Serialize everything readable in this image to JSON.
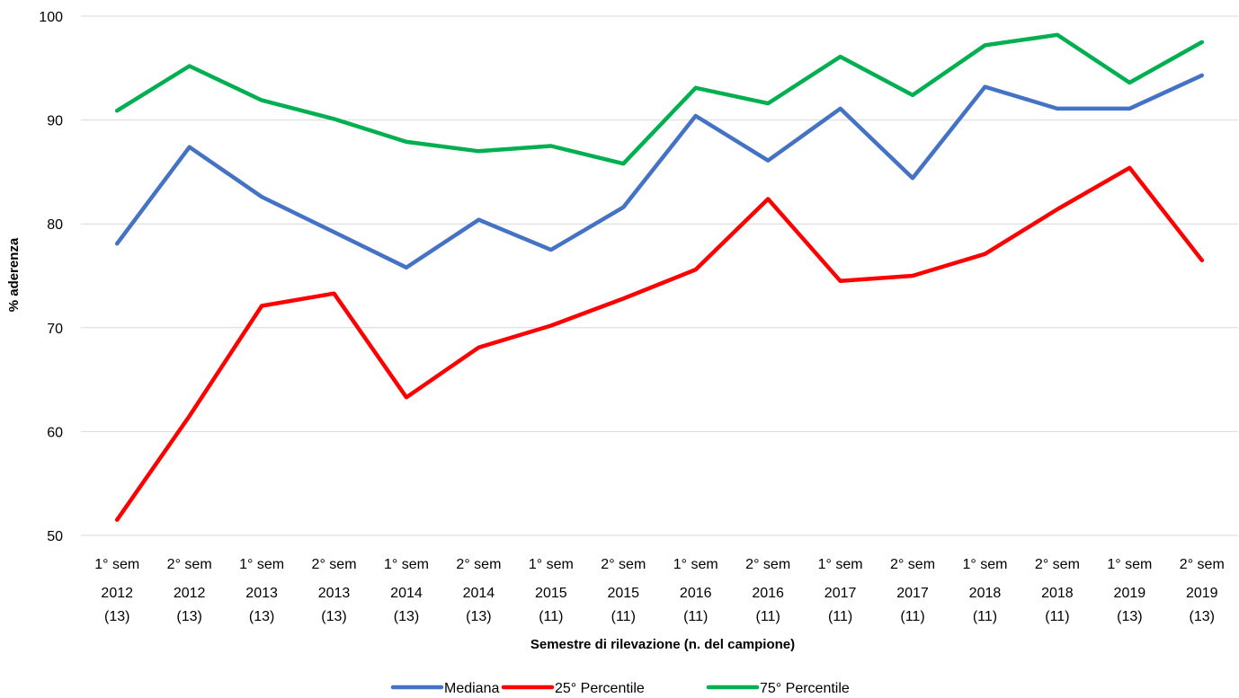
{
  "chart_data": {
    "type": "line",
    "categories": [
      {
        "sem": "1° sem",
        "year": "2012",
        "n": "(13)"
      },
      {
        "sem": "2° sem",
        "year": "2012",
        "n": "(13)"
      },
      {
        "sem": "1° sem",
        "year": "2013",
        "n": "(13)"
      },
      {
        "sem": "2° sem",
        "year": "2013",
        "n": "(13)"
      },
      {
        "sem": "1° sem",
        "year": "2014",
        "n": "(13)"
      },
      {
        "sem": "2° sem",
        "year": "2014",
        "n": "(13)"
      },
      {
        "sem": "1° sem",
        "year": "2015",
        "n": "(11)"
      },
      {
        "sem": "2° sem",
        "year": "2015",
        "n": "(11)"
      },
      {
        "sem": "1° sem",
        "year": "2016",
        "n": "(11)"
      },
      {
        "sem": "2° sem",
        "year": "2016",
        "n": "(11)"
      },
      {
        "sem": "1° sem",
        "year": "2017",
        "n": "(11)"
      },
      {
        "sem": "2° sem",
        "year": "2017",
        "n": "(11)"
      },
      {
        "sem": "1° sem",
        "year": "2018",
        "n": "(11)"
      },
      {
        "sem": "2° sem",
        "year": "2018",
        "n": "(11)"
      },
      {
        "sem": "1° sem",
        "year": "2019",
        "n": "(13)"
      },
      {
        "sem": "2° sem",
        "year": "2019",
        "n": "(13)"
      }
    ],
    "series": [
      {
        "name": "Mediana",
        "color": "#4472C4",
        "values": [
          78.1,
          87.4,
          82.6,
          79.2,
          75.8,
          80.4,
          77.5,
          81.6,
          90.4,
          86.1,
          91.1,
          84.4,
          93.2,
          91.1,
          91.1,
          94.3
        ]
      },
      {
        "name": "25° Percentile",
        "color": "#FF0000",
        "values": [
          51.5,
          61.5,
          72.1,
          73.3,
          63.3,
          68.1,
          70.2,
          72.8,
          75.6,
          82.4,
          74.5,
          75.0,
          77.1,
          81.4,
          85.4,
          76.5
        ]
      },
      {
        "name": "75° Percentile",
        "color": "#00B050",
        "values": [
          90.9,
          95.2,
          91.9,
          90.1,
          87.9,
          87.0,
          87.5,
          85.8,
          93.1,
          91.6,
          96.1,
          92.4,
          97.2,
          98.2,
          93.6,
          97.5
        ]
      }
    ],
    "title": "",
    "xlabel": "Semestre di rilevazione (n. del campione)",
    "ylabel": "% aderenza",
    "ylim": [
      50,
      100
    ],
    "yticks": [
      50,
      60,
      70,
      80,
      90,
      100
    ],
    "grid": true,
    "gridline_color": "#D9D9D9",
    "legend_position": "bottom-center"
  }
}
